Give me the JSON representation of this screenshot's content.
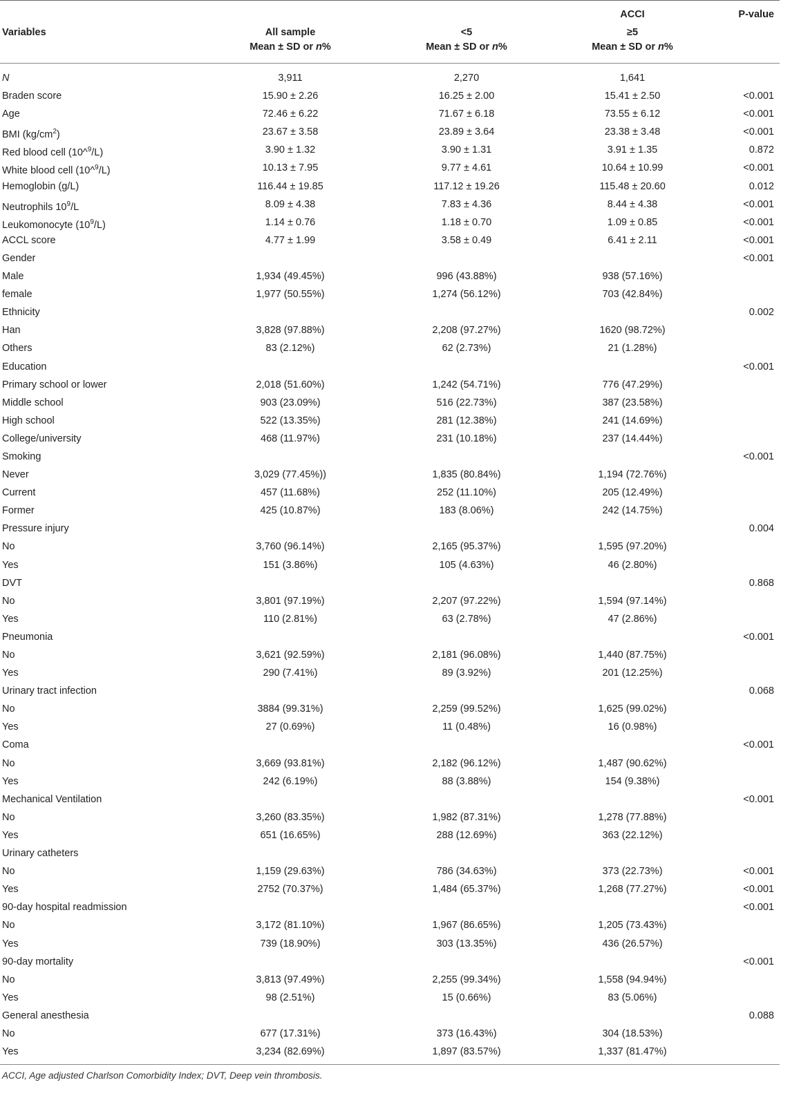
{
  "header": {
    "variables": "Variables",
    "acci": "ACCI",
    "pvalue": "P-value",
    "all_sample": "All sample",
    "lt5": "<5",
    "ge5": "≥5",
    "stat_prefix": "Mean ± SD or ",
    "stat_n": "n",
    "stat_suffix": "%"
  },
  "rows": [
    {
      "label": "N",
      "all": "3,911",
      "lt5": "2,270",
      "ge5": "1,641",
      "p": "",
      "italic": true
    },
    {
      "label": "Braden score",
      "all": "15.90 ± 2.26",
      "lt5": "16.25 ± 2.00",
      "ge5": "15.41 ± 2.50",
      "p": "<0.001"
    },
    {
      "label": "Age",
      "all": "72.46 ± 6.22",
      "lt5": "71.67 ± 6.18",
      "ge5": "73.55 ± 6.12",
      "p": "<0.001"
    },
    {
      "label": "BMI (kg/cm",
      "sup": "2",
      "label_after": ")",
      "all": "23.67 ± 3.58",
      "lt5": "23.89 ± 3.64",
      "ge5": "23.38 ± 3.48",
      "p": "<0.001"
    },
    {
      "label": "Red blood cell (10^",
      "sup": "9",
      "label_after": "/L)",
      "all": "3.90 ± 1.32",
      "lt5": "3.90 ± 1.31",
      "ge5": "3.91 ± 1.35",
      "p": "0.872"
    },
    {
      "label": "White blood cell (10^",
      "sup": "9",
      "label_after": "/L)",
      "all": "10.13 ± 7.95",
      "lt5": "9.77 ± 4.61",
      "ge5": "10.64 ± 10.99",
      "p": "<0.001"
    },
    {
      "label": "Hemoglobin (g/L)",
      "all": "116.44 ± 19.85",
      "lt5": "117.12 ± 19.26",
      "ge5": "115.48 ± 20.60",
      "p": "0.012"
    },
    {
      "label": "Neutrophils 10",
      "sup": "9",
      "label_after": "/L",
      "all": "8.09 ± 4.38",
      "lt5": "7.83 ± 4.36",
      "ge5": "8.44 ± 4.38",
      "p": "<0.001"
    },
    {
      "label": "Leukomonocyte (10",
      "sup": "9",
      "label_after": "/L)",
      "all": "1.14 ± 0.76",
      "lt5": "1.18 ± 0.70",
      "ge5": "1.09 ± 0.85",
      "p": "<0.001"
    },
    {
      "label": "ACCL score",
      "all": "4.77 ± 1.99",
      "lt5": "3.58 ± 0.49",
      "ge5": "6.41 ± 2.11",
      "p": "<0.001"
    },
    {
      "label": "Gender",
      "all": "",
      "lt5": "",
      "ge5": "",
      "p": "<0.001"
    },
    {
      "label": "Male",
      "all": "1,934 (49.45%)",
      "lt5": "996 (43.88%)",
      "ge5": "938 (57.16%)",
      "p": ""
    },
    {
      "label": "female",
      "all": "1,977 (50.55%)",
      "lt5": "1,274 (56.12%)",
      "ge5": "703 (42.84%)",
      "p": ""
    },
    {
      "label": "Ethnicity",
      "all": "",
      "lt5": "",
      "ge5": "",
      "p": "0.002"
    },
    {
      "label": "Han",
      "all": "3,828 (97.88%)",
      "lt5": "2,208 (97.27%)",
      "ge5": "1620 (98.72%)",
      "p": ""
    },
    {
      "label": "Others",
      "all": "83 (2.12%)",
      "lt5": "62 (2.73%)",
      "ge5": "21 (1.28%)",
      "p": ""
    },
    {
      "label": "Education",
      "all": "",
      "lt5": "",
      "ge5": "",
      "p": "<0.001"
    },
    {
      "label": "Primary school or lower",
      "all": "2,018 (51.60%)",
      "lt5": "1,242 (54.71%)",
      "ge5": "776 (47.29%)",
      "p": ""
    },
    {
      "label": "Middle school",
      "all": "903 (23.09%)",
      "lt5": "516 (22.73%)",
      "ge5": "387 (23.58%)",
      "p": ""
    },
    {
      "label": "High school",
      "all": "522 (13.35%)",
      "lt5": "281 (12.38%)",
      "ge5": "241 (14.69%)",
      "p": ""
    },
    {
      "label": "College/university",
      "all": "468 (11.97%)",
      "lt5": "231 (10.18%)",
      "ge5": "237 (14.44%)",
      "p": ""
    },
    {
      "label": "Smoking",
      "all": "",
      "lt5": "",
      "ge5": "",
      "p": "<0.001"
    },
    {
      "label": "Never",
      "all": "3,029 (77.45%))",
      "lt5": "1,835 (80.84%)",
      "ge5": "1,194 (72.76%)",
      "p": ""
    },
    {
      "label": "Current",
      "all": "457 (11.68%)",
      "lt5": "252 (11.10%)",
      "ge5": "205 (12.49%)",
      "p": ""
    },
    {
      "label": "Former",
      "all": "425 (10.87%)",
      "lt5": "183 (8.06%)",
      "ge5": "242 (14.75%)",
      "p": ""
    },
    {
      "label": "Pressure injury",
      "all": "",
      "lt5": "",
      "ge5": "",
      "p": "0.004"
    },
    {
      "label": "No",
      "all": "3,760 (96.14%)",
      "lt5": "2,165 (95.37%)",
      "ge5": "1,595 (97.20%)",
      "p": ""
    },
    {
      "label": "Yes",
      "all": "151 (3.86%)",
      "lt5": "105 (4.63%)",
      "ge5": "46 (2.80%)",
      "p": ""
    },
    {
      "label": "DVT",
      "all": "",
      "lt5": "",
      "ge5": "",
      "p": "0.868"
    },
    {
      "label": "No",
      "all": "3,801 (97.19%)",
      "lt5": "2,207 (97.22%)",
      "ge5": "1,594 (97.14%)",
      "p": ""
    },
    {
      "label": "Yes",
      "all": "110 (2.81%)",
      "lt5": "63 (2.78%)",
      "ge5": "47 (2.86%)",
      "p": ""
    },
    {
      "label": "Pneumonia",
      "all": "",
      "lt5": "",
      "ge5": "",
      "p": "<0.001"
    },
    {
      "label": "No",
      "all": "3,621 (92.59%)",
      "lt5": "2,181 (96.08%)",
      "ge5": "1,440 (87.75%)",
      "p": ""
    },
    {
      "label": "Yes",
      "all": "290 (7.41%)",
      "lt5": "89 (3.92%)",
      "ge5": "201 (12.25%)",
      "p": ""
    },
    {
      "label": "Urinary tract infection",
      "all": "",
      "lt5": "",
      "ge5": "",
      "p": "0.068"
    },
    {
      "label": "No",
      "all": "3884 (99.31%)",
      "lt5": "2,259 (99.52%)",
      "ge5": "1,625 (99.02%)",
      "p": ""
    },
    {
      "label": "Yes",
      "all": "27 (0.69%)",
      "lt5": "11 (0.48%)",
      "ge5": "16 (0.98%)",
      "p": ""
    },
    {
      "label": "Coma",
      "all": "",
      "lt5": "",
      "ge5": "",
      "p": "<0.001"
    },
    {
      "label": "No",
      "all": "3,669 (93.81%)",
      "lt5": "2,182 (96.12%)",
      "ge5": "1,487 (90.62%)",
      "p": ""
    },
    {
      "label": "Yes",
      "all": "242 (6.19%)",
      "lt5": "88 (3.88%)",
      "ge5": "154 (9.38%)",
      "p": ""
    },
    {
      "label": "Mechanical Ventilation",
      "all": "",
      "lt5": "",
      "ge5": "",
      "p": "<0.001"
    },
    {
      "label": "No",
      "all": "3,260 (83.35%)",
      "lt5": "1,982 (87.31%)",
      "ge5": "1,278 (77.88%)",
      "p": ""
    },
    {
      "label": "Yes",
      "all": "651 (16.65%)",
      "lt5": "288 (12.69%)",
      "ge5": "363 (22.12%)",
      "p": ""
    },
    {
      "label": "Urinary catheters",
      "all": "",
      "lt5": "",
      "ge5": "",
      "p": ""
    },
    {
      "label": "No",
      "all": "1,159 (29.63%)",
      "lt5": "786 (34.63%)",
      "ge5": "373 (22.73%)",
      "p": "<0.001"
    },
    {
      "label": "Yes",
      "all": "2752 (70.37%)",
      "lt5": "1,484 (65.37%)",
      "ge5": "1,268 (77.27%)",
      "p": "<0.001"
    },
    {
      "label": "90-day hospital readmission",
      "all": "",
      "lt5": "",
      "ge5": "",
      "p": "<0.001"
    },
    {
      "label": "No",
      "all": "3,172 (81.10%)",
      "lt5": "1,967 (86.65%)",
      "ge5": "1,205 (73.43%)",
      "p": ""
    },
    {
      "label": "Yes",
      "all": "739 (18.90%)",
      "lt5": "303 (13.35%)",
      "ge5": "436 (26.57%)",
      "p": ""
    },
    {
      "label": "90-day mortality",
      "all": "",
      "lt5": "",
      "ge5": "",
      "p": "<0.001"
    },
    {
      "label": "No",
      "all": "3,813 (97.49%)",
      "lt5": "2,255 (99.34%)",
      "ge5": "1,558 (94.94%)",
      "p": ""
    },
    {
      "label": "Yes",
      "all": "98 (2.51%)",
      "lt5": "15 (0.66%)",
      "ge5": "83 (5.06%)",
      "p": ""
    },
    {
      "label": "General anesthesia",
      "all": "",
      "lt5": "",
      "ge5": "",
      "p": "0.088"
    },
    {
      "label": "No",
      "all": "677 (17.31%)",
      "lt5": "373 (16.43%)",
      "ge5": "304 (18.53%)",
      "p": ""
    },
    {
      "label": "Yes",
      "all": "3,234 (82.69%)",
      "lt5": "1,897 (83.57%)",
      "ge5": "1,337 (81.47%)",
      "p": ""
    }
  ],
  "footnote": "ACCI, Age adjusted Charlson Comorbidity Index; DVT, Deep vein thrombosis."
}
